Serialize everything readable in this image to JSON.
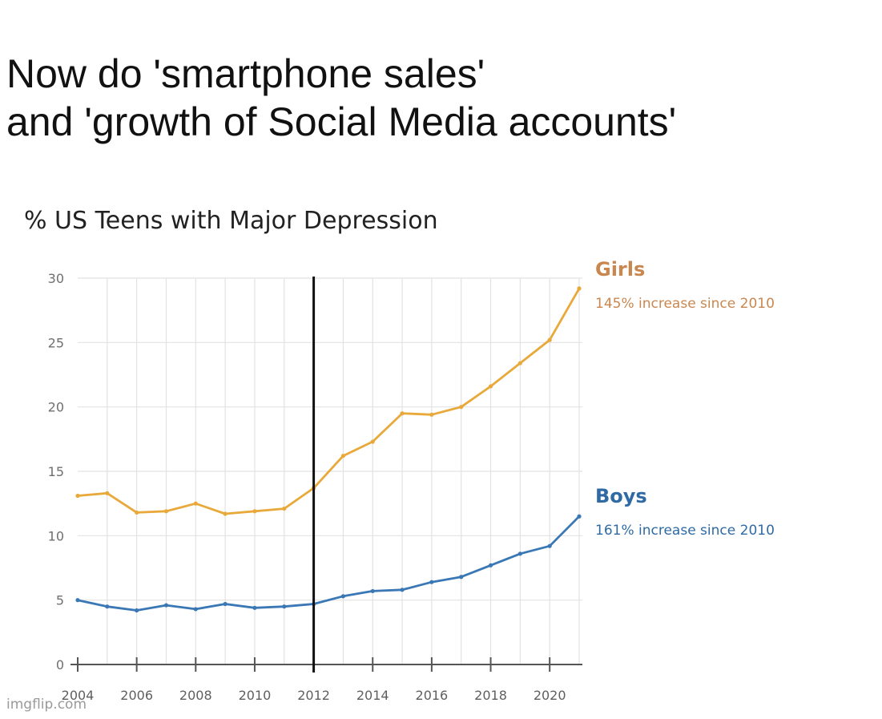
{
  "caption": {
    "line1": "Now do 'smartphone sales'",
    "line2": "and 'growth of Social Media accounts'"
  },
  "watermark": "imgflip.com",
  "chart_data": {
    "type": "line",
    "title": "% US Teens with Major Depression",
    "xlabel": "",
    "ylabel": "",
    "x": [
      2004,
      2005,
      2006,
      2007,
      2008,
      2009,
      2010,
      2011,
      2012,
      2013,
      2014,
      2015,
      2016,
      2017,
      2018,
      2019,
      2020,
      2021
    ],
    "xlim": [
      2004,
      2021
    ],
    "ylim": [
      0,
      30
    ],
    "xticks": [
      "2004",
      "2006",
      "2008",
      "2010",
      "2012",
      "2014",
      "2016",
      "2018",
      "2020"
    ],
    "yticks": [
      "0",
      "5",
      "10",
      "15",
      "20",
      "25",
      "30"
    ],
    "grid": true,
    "vertical_marker": 2012,
    "series": [
      {
        "name": "Girls",
        "annotation": "145% increase since 2010",
        "color": "#E8A93A",
        "label_color": "#C9874F",
        "values": [
          13.1,
          13.3,
          11.8,
          11.9,
          12.5,
          11.7,
          11.9,
          12.1,
          13.7,
          16.2,
          17.3,
          19.5,
          19.4,
          20.0,
          21.6,
          23.4,
          25.2,
          29.2
        ]
      },
      {
        "name": "Boys",
        "annotation": "161% increase since 2010",
        "color": "#3A78B5",
        "label_color": "#2F6AA5",
        "values": [
          5.0,
          4.5,
          4.2,
          4.6,
          4.3,
          4.7,
          4.4,
          4.5,
          4.7,
          5.3,
          5.7,
          5.8,
          6.4,
          6.8,
          7.7,
          8.6,
          9.2,
          11.5
        ]
      }
    ]
  }
}
